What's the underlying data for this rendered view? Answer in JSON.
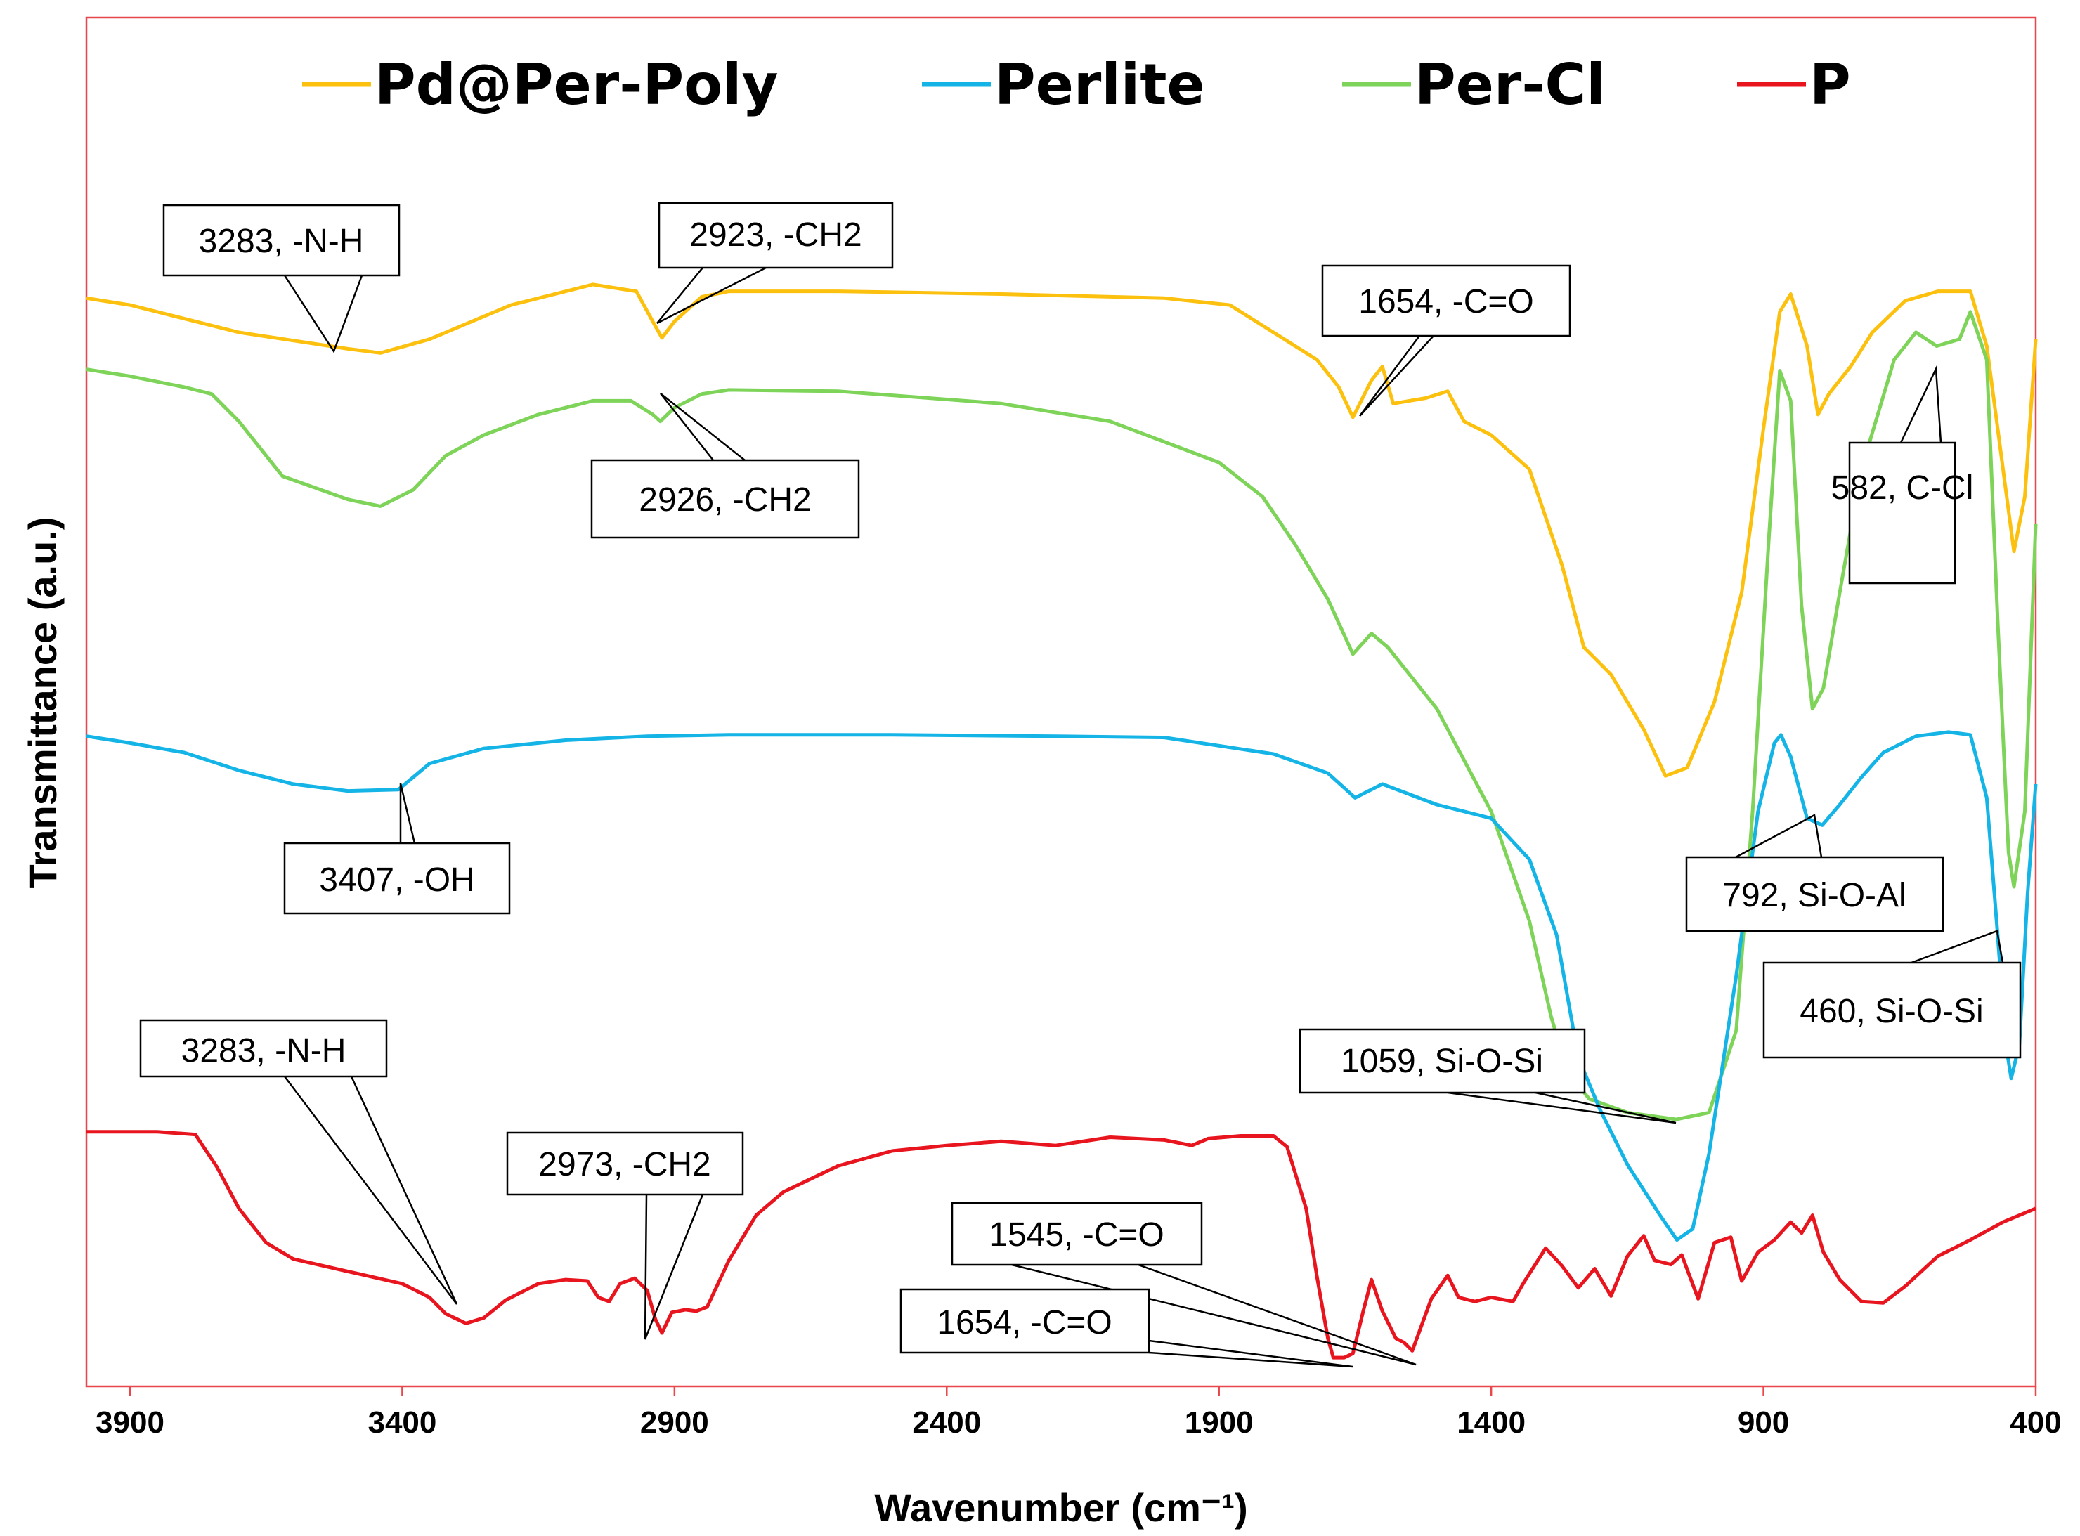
{
  "chart_data": {
    "type": "line",
    "title": "",
    "xlabel": "Wavenumber (cm⁻¹)",
    "ylabel": "Transmittance (a.u.)",
    "xlim": [
      3980,
      400
    ],
    "x_reversed": true,
    "xticks": [
      3900,
      3400,
      2900,
      2400,
      1900,
      1400,
      900,
      400
    ],
    "xtick_labels": [
      "3900",
      "3400",
      "2900",
      "2400",
      "1900",
      "1400",
      "900",
      "400"
    ],
    "ylim": [
      0,
      100
    ],
    "grid": false,
    "legend_position": "top",
    "colors": {
      "frame": "#e8474b",
      "pd_per_poly": "#fcc00e",
      "perlite": "#14b4e6",
      "per_cl": "#7ed359",
      "p": "#e8151f"
    },
    "series": [
      {
        "name": "Pd@Per-Poly",
        "color": "#fcc00e",
        "points": [
          [
            3980,
            79.5
          ],
          [
            3900,
            79
          ],
          [
            3800,
            78
          ],
          [
            3700,
            77
          ],
          [
            3600,
            76.4
          ],
          [
            3500,
            75.8
          ],
          [
            3440,
            75.5
          ],
          [
            3350,
            76.5
          ],
          [
            3200,
            79
          ],
          [
            3050,
            80.5
          ],
          [
            2970,
            80
          ],
          [
            2940,
            77.8
          ],
          [
            2923,
            76.6
          ],
          [
            2900,
            77.8
          ],
          [
            2850,
            79.6
          ],
          [
            2800,
            80
          ],
          [
            2600,
            80
          ],
          [
            2300,
            79.8
          ],
          [
            2000,
            79.5
          ],
          [
            1880,
            79
          ],
          [
            1800,
            77
          ],
          [
            1720,
            75
          ],
          [
            1680,
            73
          ],
          [
            1654,
            70.8
          ],
          [
            1620,
            73.5
          ],
          [
            1600,
            74.5
          ],
          [
            1580,
            71.8
          ],
          [
            1520,
            72.2
          ],
          [
            1480,
            72.7
          ],
          [
            1450,
            70.5
          ],
          [
            1400,
            69.5
          ],
          [
            1330,
            67
          ],
          [
            1270,
            60
          ],
          [
            1230,
            54
          ],
          [
            1180,
            52
          ],
          [
            1120,
            48
          ],
          [
            1080,
            44.6
          ],
          [
            1040,
            45.2
          ],
          [
            990,
            50
          ],
          [
            940,
            58
          ],
          [
            900,
            70
          ],
          [
            870,
            78.5
          ],
          [
            850,
            79.8
          ],
          [
            820,
            76
          ],
          [
            800,
            71
          ],
          [
            780,
            72.5
          ],
          [
            740,
            74.5
          ],
          [
            700,
            77
          ],
          [
            640,
            79.3
          ],
          [
            580,
            80
          ],
          [
            520,
            80
          ],
          [
            490,
            76
          ],
          [
            460,
            67
          ],
          [
            440,
            61
          ],
          [
            420,
            65
          ],
          [
            400,
            76.5
          ]
        ]
      },
      {
        "name": "Per-Cl",
        "color": "#7ed359",
        "points": [
          [
            3980,
            74.3
          ],
          [
            3900,
            73.8
          ],
          [
            3800,
            73
          ],
          [
            3750,
            72.5
          ],
          [
            3700,
            70.5
          ],
          [
            3620,
            66.5
          ],
          [
            3500,
            64.8
          ],
          [
            3440,
            64.3
          ],
          [
            3380,
            65.5
          ],
          [
            3320,
            68
          ],
          [
            3250,
            69.5
          ],
          [
            3150,
            71
          ],
          [
            3050,
            72
          ],
          [
            2980,
            72
          ],
          [
            2940,
            71
          ],
          [
            2926,
            70.5
          ],
          [
            2900,
            71.5
          ],
          [
            2850,
            72.5
          ],
          [
            2800,
            72.8
          ],
          [
            2600,
            72.7
          ],
          [
            2300,
            71.8
          ],
          [
            2100,
            70.5
          ],
          [
            1900,
            67.5
          ],
          [
            1820,
            65
          ],
          [
            1760,
            61.5
          ],
          [
            1700,
            57.5
          ],
          [
            1654,
            53.5
          ],
          [
            1620,
            55
          ],
          [
            1590,
            54
          ],
          [
            1500,
            49.5
          ],
          [
            1400,
            42
          ],
          [
            1330,
            34
          ],
          [
            1290,
            27
          ],
          [
            1260,
            23
          ],
          [
            1220,
            21
          ],
          [
            1150,
            20
          ],
          [
            1060,
            19.5
          ],
          [
            1000,
            20
          ],
          [
            950,
            26
          ],
          [
            920,
            42
          ],
          [
            890,
            62
          ],
          [
            870,
            74.2
          ],
          [
            850,
            72
          ],
          [
            830,
            57
          ],
          [
            810,
            49.5
          ],
          [
            790,
            51
          ],
          [
            760,
            58
          ],
          [
            720,
            67
          ],
          [
            660,
            75
          ],
          [
            620,
            77
          ],
          [
            582,
            76
          ],
          [
            540,
            76.5
          ],
          [
            520,
            78.5
          ],
          [
            490,
            75
          ],
          [
            470,
            56
          ],
          [
            450,
            39
          ],
          [
            440,
            36.5
          ],
          [
            420,
            42
          ],
          [
            400,
            63
          ]
        ]
      },
      {
        "name": "Perlite",
        "color": "#14b4e6",
        "points": [
          [
            3980,
            47.5
          ],
          [
            3900,
            47
          ],
          [
            3800,
            46.3
          ],
          [
            3700,
            45
          ],
          [
            3600,
            44
          ],
          [
            3500,
            43.5
          ],
          [
            3407,
            43.6
          ],
          [
            3350,
            45.5
          ],
          [
            3250,
            46.6
          ],
          [
            3100,
            47.2
          ],
          [
            2950,
            47.5
          ],
          [
            2800,
            47.6
          ],
          [
            2500,
            47.6
          ],
          [
            2200,
            47.5
          ],
          [
            2000,
            47.4
          ],
          [
            1800,
            46.2
          ],
          [
            1700,
            44.8
          ],
          [
            1650,
            43
          ],
          [
            1600,
            44
          ],
          [
            1500,
            42.5
          ],
          [
            1400,
            41.5
          ],
          [
            1330,
            38.5
          ],
          [
            1280,
            33
          ],
          [
            1240,
            24
          ],
          [
            1200,
            20.2
          ],
          [
            1150,
            16.2
          ],
          [
            1090,
            12.5
          ],
          [
            1059,
            10.7
          ],
          [
            1030,
            11.5
          ],
          [
            1000,
            17
          ],
          [
            950,
            30
          ],
          [
            910,
            42
          ],
          [
            880,
            47
          ],
          [
            868,
            47.6
          ],
          [
            850,
            46
          ],
          [
            820,
            41.5
          ],
          [
            792,
            41
          ],
          [
            760,
            42.5
          ],
          [
            720,
            44.5
          ],
          [
            680,
            46.3
          ],
          [
            620,
            47.5
          ],
          [
            560,
            47.8
          ],
          [
            520,
            47.6
          ],
          [
            490,
            43
          ],
          [
            470,
            33
          ],
          [
            455,
            25
          ],
          [
            445,
            22.5
          ],
          [
            430,
            25
          ],
          [
            415,
            36
          ],
          [
            400,
            44
          ]
        ]
      },
      {
        "name": "P",
        "color": "#e8151f",
        "points": [
          [
            3980,
            18.6
          ],
          [
            3850,
            18.6
          ],
          [
            3780,
            18.4
          ],
          [
            3740,
            16
          ],
          [
            3700,
            13
          ],
          [
            3650,
            10.5
          ],
          [
            3600,
            9.3
          ],
          [
            3500,
            8.4
          ],
          [
            3400,
            7.5
          ],
          [
            3350,
            6.5
          ],
          [
            3320,
            5.3
          ],
          [
            3283,
            4.6
          ],
          [
            3250,
            5
          ],
          [
            3210,
            6.3
          ],
          [
            3150,
            7.5
          ],
          [
            3100,
            7.8
          ],
          [
            3060,
            7.7
          ],
          [
            3040,
            6.5
          ],
          [
            3020,
            6.2
          ],
          [
            3000,
            7.5
          ],
          [
            2973,
            7.9
          ],
          [
            2950,
            7
          ],
          [
            2935,
            4.9
          ],
          [
            2923,
            3.9
          ],
          [
            2905,
            5.4
          ],
          [
            2880,
            5.6
          ],
          [
            2860,
            5.5
          ],
          [
            2840,
            5.8
          ],
          [
            2800,
            9.2
          ],
          [
            2750,
            12.5
          ],
          [
            2700,
            14.2
          ],
          [
            2600,
            16.1
          ],
          [
            2500,
            17.2
          ],
          [
            2400,
            17.6
          ],
          [
            2300,
            17.9
          ],
          [
            2200,
            17.6
          ],
          [
            2100,
            18.2
          ],
          [
            2000,
            18
          ],
          [
            1950,
            17.6
          ],
          [
            1920,
            18.1
          ],
          [
            1860,
            18.3
          ],
          [
            1800,
            18.3
          ],
          [
            1775,
            17.5
          ],
          [
            1740,
            13
          ],
          [
            1720,
            8
          ],
          [
            1700,
            3.5
          ],
          [
            1690,
            2.1
          ],
          [
            1670,
            2.1
          ],
          [
            1654,
            2.4
          ],
          [
            1635,
            5.5
          ],
          [
            1620,
            7.8
          ],
          [
            1600,
            5.5
          ],
          [
            1575,
            3.5
          ],
          [
            1560,
            3.2
          ],
          [
            1545,
            2.6
          ],
          [
            1510,
            6.4
          ],
          [
            1480,
            8.1
          ],
          [
            1460,
            6.5
          ],
          [
            1430,
            6.2
          ],
          [
            1400,
            6.5
          ],
          [
            1360,
            6.2
          ],
          [
            1340,
            7.6
          ],
          [
            1300,
            10.1
          ],
          [
            1270,
            8.8
          ],
          [
            1240,
            7.2
          ],
          [
            1210,
            8.6
          ],
          [
            1180,
            6.6
          ],
          [
            1150,
            9.5
          ],
          [
            1120,
            11
          ],
          [
            1100,
            9.2
          ],
          [
            1070,
            8.9
          ],
          [
            1050,
            9.6
          ],
          [
            1020,
            6.4
          ],
          [
            990,
            10.5
          ],
          [
            960,
            10.9
          ],
          [
            940,
            7.7
          ],
          [
            910,
            9.8
          ],
          [
            880,
            10.7
          ],
          [
            850,
            12
          ],
          [
            830,
            11.2
          ],
          [
            810,
            12.5
          ],
          [
            790,
            9.8
          ],
          [
            760,
            7.8
          ],
          [
            720,
            6.2
          ],
          [
            680,
            6.1
          ],
          [
            640,
            7.3
          ],
          [
            580,
            9.5
          ],
          [
            520,
            10.7
          ],
          [
            460,
            12
          ],
          [
            400,
            13
          ]
        ]
      }
    ],
    "annotations": [
      {
        "text": "3283, -N-H",
        "series": "Pd@Per-Poly",
        "x": 3550
      },
      {
        "text": "2923, -CH2",
        "series": "Pd@Per-Poly",
        "x": 2923
      },
      {
        "text": "1654, -C=O",
        "series": "Pd@Per-Poly",
        "x": 1654
      },
      {
        "text": "2926, -CH2",
        "series": "Per-Cl",
        "x": 2926
      },
      {
        "text": "582, C-Cl",
        "series": "Per-Cl",
        "x": 582
      },
      {
        "text": "3407, -OH",
        "series": "Perlite",
        "x": 3407
      },
      {
        "text": "792, Si-O-Al",
        "series": "Perlite",
        "x": 792
      },
      {
        "text": "460, Si-O-Si",
        "series": "Perlite",
        "x": 460
      },
      {
        "text": "1059, Si-O-Si",
        "series": "Perlite",
        "x": 1059
      },
      {
        "text": "3283, -N-H",
        "series": "P",
        "x": 3283
      },
      {
        "text": "2973, -CH2",
        "series": "P",
        "x": 2973
      },
      {
        "text": "1545, -C=O",
        "series": "P",
        "x": 1545
      },
      {
        "text": "1654, -C=O",
        "series": "P",
        "x": 1654
      }
    ]
  }
}
